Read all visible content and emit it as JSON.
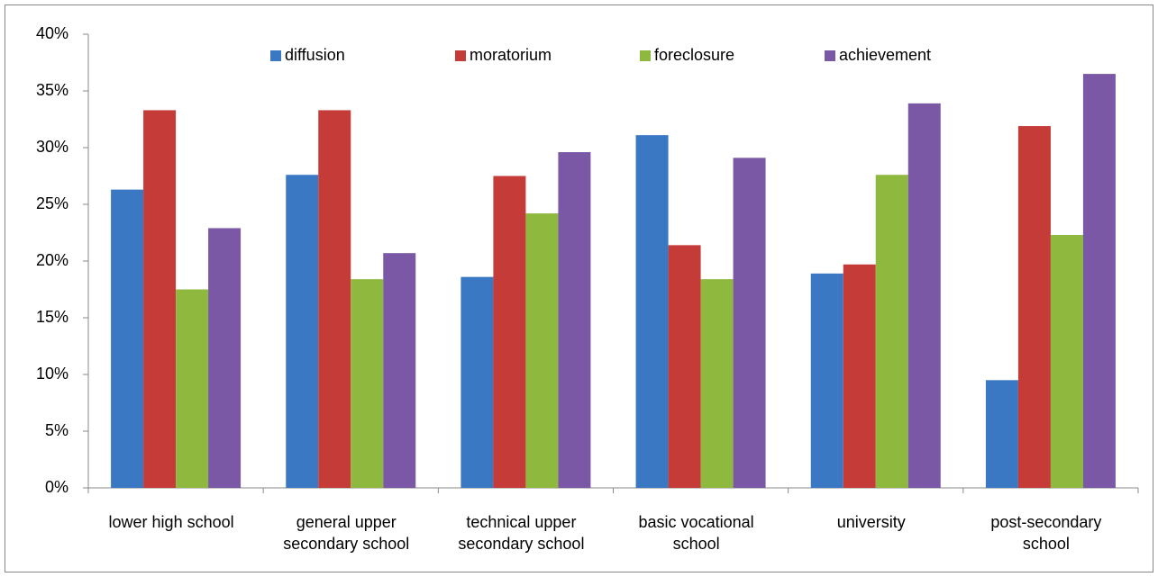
{
  "chart_data": {
    "type": "bar",
    "categories": [
      "lower high school",
      "general upper secondary school",
      "technical upper secondary school",
      "basic vocational school",
      "university",
      "post-secondary school"
    ],
    "series": [
      {
        "name": "diffusion",
        "color": "#3b78c4",
        "values": [
          26.3,
          27.6,
          18.6,
          31.1,
          18.9,
          9.5
        ]
      },
      {
        "name": "moratorium",
        "color": "#c43b38",
        "values": [
          33.3,
          33.3,
          27.5,
          21.4,
          19.7,
          31.9
        ]
      },
      {
        "name": "foreclosure",
        "color": "#8fb83f",
        "values": [
          17.5,
          18.4,
          24.2,
          18.4,
          27.6,
          22.3
        ]
      },
      {
        "name": "achievement",
        "color": "#7a58a6",
        "values": [
          22.9,
          20.7,
          29.6,
          29.1,
          33.9,
          36.5
        ]
      }
    ],
    "ylim": [
      0,
      40
    ],
    "yticks": [
      {
        "value": 0,
        "label": "0%"
      },
      {
        "value": 5,
        "label": "5%"
      },
      {
        "value": 10,
        "label": "10%"
      },
      {
        "value": 15,
        "label": "15%"
      },
      {
        "value": 20,
        "label": "20%"
      },
      {
        "value": 25,
        "label": "25%"
      },
      {
        "value": 30,
        "label": "30%"
      },
      {
        "value": 35,
        "label": "35%"
      },
      {
        "value": 40,
        "label": "40%"
      }
    ],
    "legend": "top"
  }
}
